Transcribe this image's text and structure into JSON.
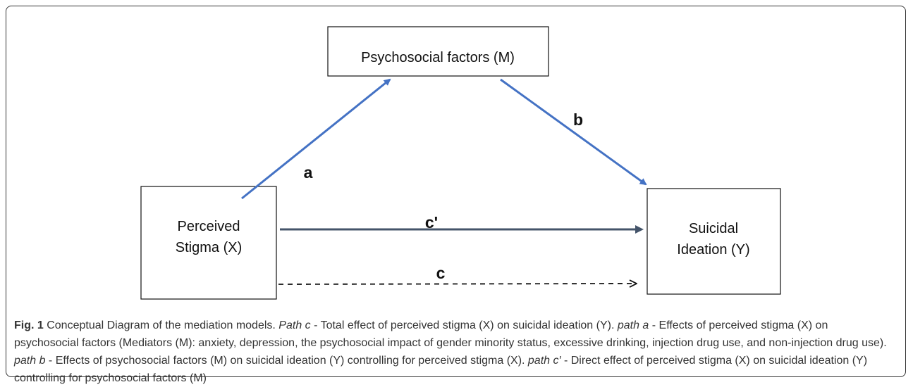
{
  "nodes": [
    {
      "lines": [
        "Psychosocial factors (M)"
      ]
    },
    {
      "lines": [
        "Perceived",
        "Stigma (X)"
      ]
    },
    {
      "lines": [
        "Suicidal",
        "Ideation (Y)"
      ]
    }
  ],
  "edges": [
    {
      "label": "a"
    },
    {
      "label": "b"
    },
    {
      "label": "c'"
    },
    {
      "label": "c"
    }
  ],
  "caption": {
    "label": "Fig. 1",
    "parts": [
      {
        "text": " Conceptual Diagram of the mediation models. ",
        "style": "normal"
      },
      {
        "text": "Path c",
        "style": "italic"
      },
      {
        "text": " - Total effect of perceived stigma (X) on suicidal ideation (Y). ",
        "style": "normal"
      },
      {
        "text": "path a",
        "style": "italic"
      },
      {
        "text": " - Effects of perceived stigma (X) on psychosocial factors (Mediators (M): anxiety, depression, the psychosocial impact of gender minority status, excessive drinking, injection drug use, and non-injection drug use). ",
        "style": "normal"
      },
      {
        "text": "path b",
        "style": "italic"
      },
      {
        "text": " - Effects of psychosocial factors (M) on suicidal ideation (Y) controlling for perceived stigma (X). ",
        "style": "normal"
      },
      {
        "text": "path c′",
        "style": "italic"
      },
      {
        "text": " - Direct effect of perceived stigma (X) on suicidal ideation (Y) controlling for psychosocial factors (M)",
        "style": "normal"
      }
    ]
  }
}
